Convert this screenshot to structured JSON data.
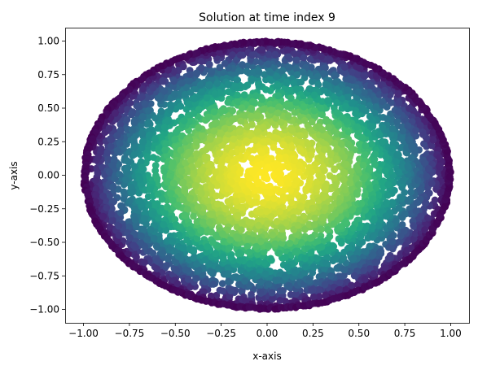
{
  "chart_data": {
    "type": "scatter",
    "title": "Solution at time index 9",
    "xlabel": "x-axis",
    "ylabel": "y-axis",
    "xlim": [
      -1.1,
      1.1
    ],
    "ylim": [
      -1.1,
      1.1
    ],
    "xticks": [
      -1.0,
      -0.75,
      -0.5,
      -0.25,
      0.0,
      0.25,
      0.5,
      0.75,
      1.0
    ],
    "xtick_labels": [
      "−1.00",
      "−0.75",
      "−0.50",
      "−0.25",
      "0.00",
      "0.25",
      "0.50",
      "0.75",
      "1.00"
    ],
    "yticks": [
      1.0,
      0.75,
      0.5,
      0.25,
      0.0,
      -0.25,
      -0.5,
      -0.75,
      -1.0
    ],
    "ytick_labels": [
      "1.00",
      "0.75",
      "0.50",
      "0.25",
      "0.00",
      "−0.25",
      "−0.50",
      "−0.75",
      "−1.00"
    ],
    "domain": "unit disk",
    "colormap": "viridis",
    "color_range": [
      0.0,
      0.6
    ],
    "value_at_center": 0.6,
    "value_at_boundary": 0.0,
    "grid": false
  }
}
